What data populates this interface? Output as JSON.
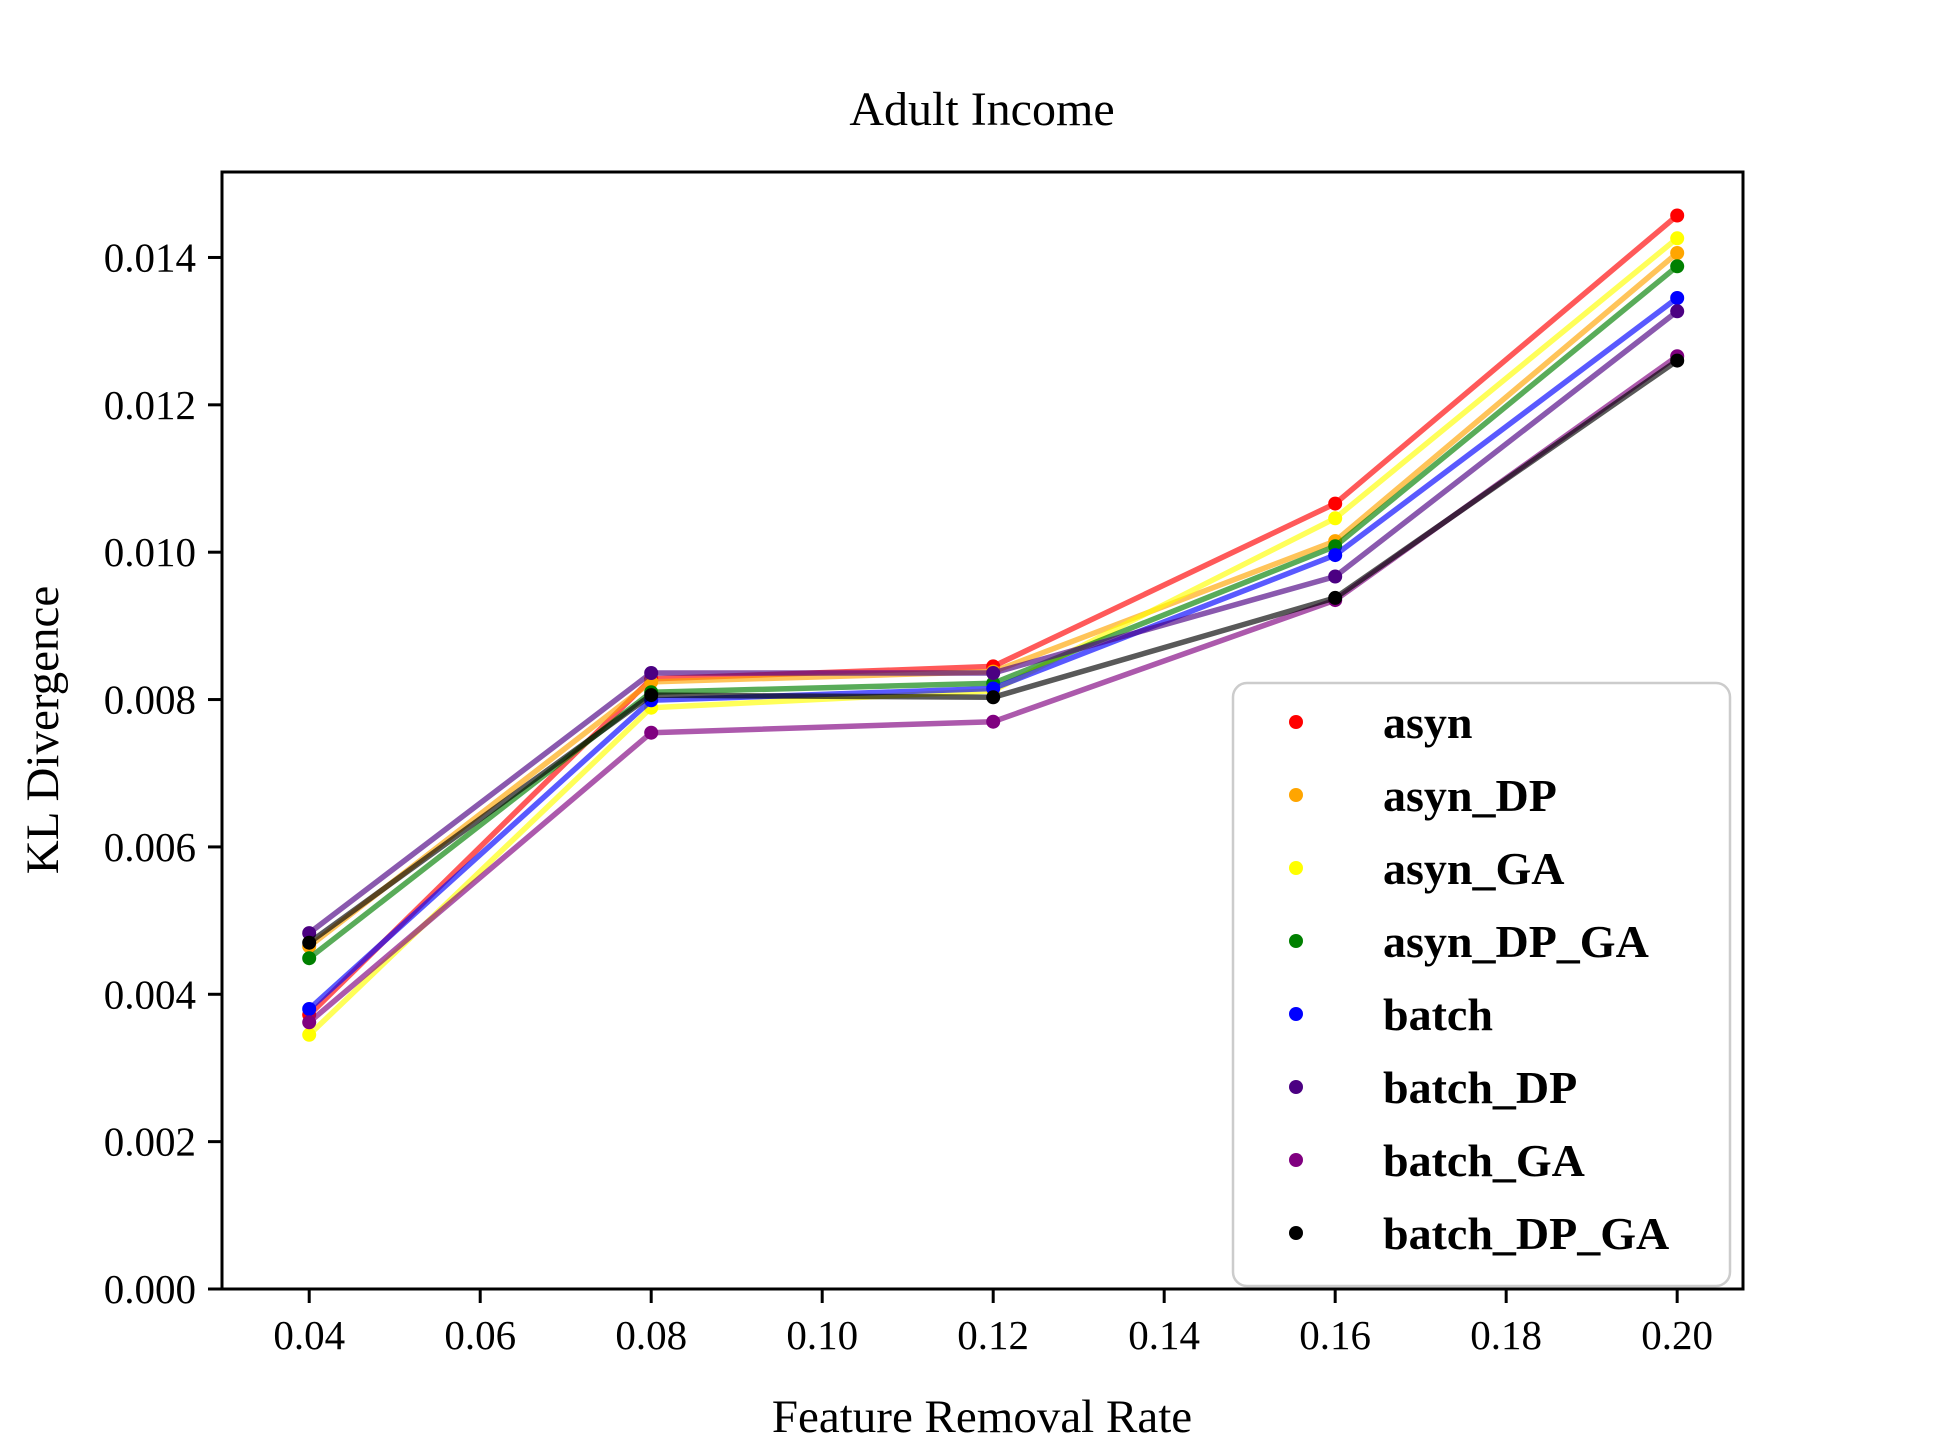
{
  "figure": {
    "background": "#ffffff"
  },
  "chart_data": {
    "type": "line",
    "title": "Adult Income",
    "xlabel": "Feature Removal Rate",
    "ylabel": "KL Divergence",
    "x": [
      0.04,
      0.08,
      0.12,
      0.16,
      0.2
    ],
    "xlim": [
      0.0298,
      0.2077
    ],
    "ylim": [
      0.0,
      0.01516
    ],
    "x_ticks": [
      0.04,
      0.06,
      0.08,
      0.1,
      0.12,
      0.14,
      0.16,
      0.18,
      0.2
    ],
    "x_tick_labels": [
      "0.04",
      "0.06",
      "0.08",
      "0.10",
      "0.12",
      "0.14",
      "0.16",
      "0.18",
      "0.20"
    ],
    "y_ticks": [
      0.0,
      0.002,
      0.004,
      0.006,
      0.008,
      0.01,
      0.012,
      0.014
    ],
    "y_tick_labels": [
      "0.000",
      "0.002",
      "0.004",
      "0.006",
      "0.008",
      "0.010",
      "0.012",
      "0.014"
    ],
    "grid": false,
    "legend_position": "inside lower-right",
    "series": [
      {
        "name": "asyn",
        "color": "#ff0000",
        "values": [
          0.00372,
          0.00828,
          0.00845,
          0.01066,
          0.01457
        ]
      },
      {
        "name": "asyn_DP",
        "color": "#ffa500",
        "values": [
          0.00465,
          0.00824,
          0.00838,
          0.01015,
          0.01406
        ]
      },
      {
        "name": "asyn_GA",
        "color": "#ffff00",
        "values": [
          0.00345,
          0.00789,
          0.00812,
          0.01046,
          0.01426
        ]
      },
      {
        "name": "asyn_DP_GA",
        "color": "#008000",
        "values": [
          0.00449,
          0.0081,
          0.00822,
          0.01008,
          0.01388
        ]
      },
      {
        "name": "batch",
        "color": "#0000ff",
        "values": [
          0.0038,
          0.00799,
          0.00815,
          0.00996,
          0.01345
        ]
      },
      {
        "name": "batch_DP",
        "color": "#4b0082",
        "values": [
          0.00483,
          0.00836,
          0.00836,
          0.00967,
          0.01327
        ]
      },
      {
        "name": "batch_GA",
        "color": "#800080",
        "values": [
          0.00362,
          0.00755,
          0.0077,
          0.00935,
          0.01266
        ]
      },
      {
        "name": "batch_DP_GA",
        "color": "#000000",
        "values": [
          0.0047,
          0.00806,
          0.00803,
          0.00938,
          0.0126
        ]
      }
    ],
    "style": {
      "line_width": 5.5,
      "line_opacity": 0.65,
      "marker_radius": 7,
      "spine_color": "#000000",
      "legend_border_color": "#cccccc",
      "legend_background": "#ffffff"
    }
  }
}
